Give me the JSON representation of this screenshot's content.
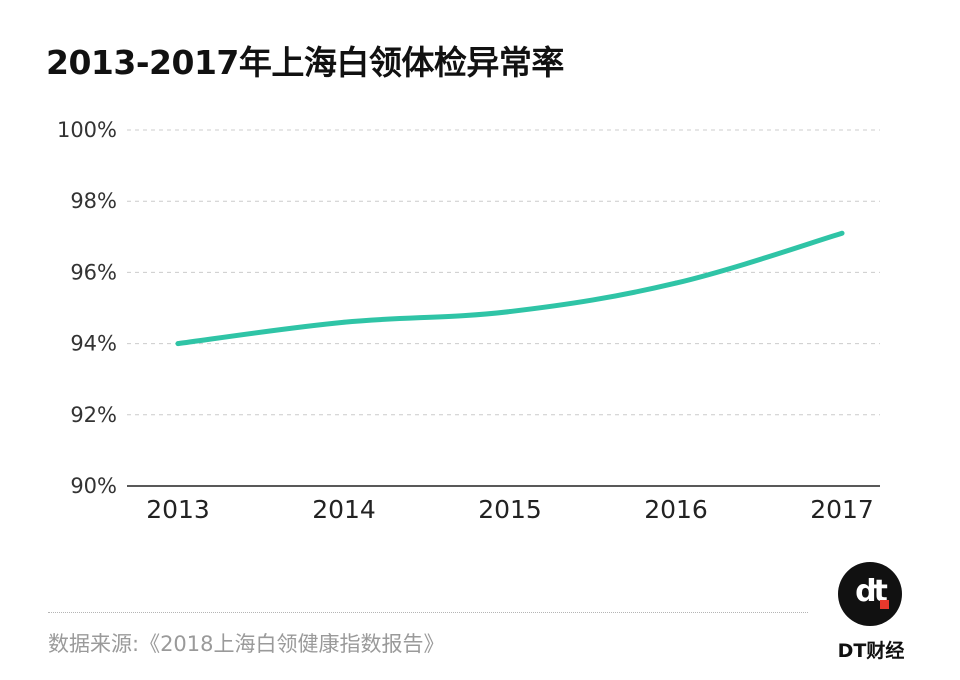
{
  "chart_data": {
    "type": "line",
    "title": "2013-2017年上海白领体检异常率",
    "categories": [
      "2013",
      "2014",
      "2015",
      "2016",
      "2017"
    ],
    "series": [
      {
        "values": [
          94.0,
          94.6,
          94.9,
          95.7,
          97.1
        ],
        "color": "#2fc4a6"
      }
    ],
    "ylim": [
      90,
      100
    ],
    "yticks": [
      90,
      92,
      94,
      96,
      98,
      100
    ],
    "ytick_labels": [
      "90%",
      "92%",
      "94%",
      "96%",
      "98%",
      "100%"
    ],
    "grid": true
  },
  "source": "数据来源:《2018上海白领健康指数报告》",
  "brand": {
    "logo_icon": "dt-logo-icon",
    "name": "DT财经",
    "accent": "#e8382c"
  }
}
